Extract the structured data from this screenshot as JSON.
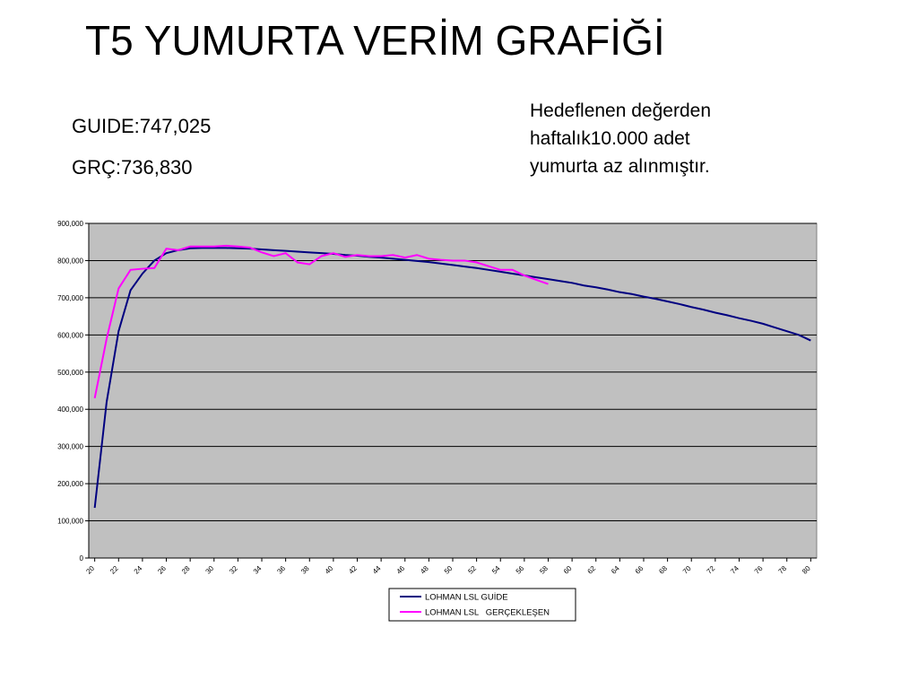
{
  "chart_data": {
    "type": "line",
    "title": "T5 YUMURTA VERİM GRAFİĞİ",
    "annotations": [
      "GUIDE:747,025",
      "GRÇ:736,830"
    ],
    "note": [
      "Hedeflenen değerden",
      "haftalık10.000 adet",
      "yumurta az alınmıştır."
    ],
    "x": [
      20,
      21,
      22,
      23,
      24,
      25,
      26,
      27,
      28,
      29,
      30,
      31,
      32,
      33,
      34,
      35,
      36,
      37,
      38,
      39,
      40,
      41,
      42,
      43,
      44,
      45,
      46,
      47,
      48,
      49,
      50,
      51,
      52,
      53,
      54,
      55,
      56,
      57,
      58,
      59,
      60,
      61,
      62,
      63,
      64,
      65,
      66,
      67,
      68,
      69,
      70,
      71,
      72,
      73,
      74,
      75,
      76,
      77,
      78,
      79,
      80
    ],
    "xlim": [
      19.5,
      80.5
    ],
    "xticks": [
      20,
      22,
      24,
      26,
      28,
      30,
      32,
      34,
      36,
      38,
      40,
      42,
      44,
      46,
      48,
      50,
      52,
      54,
      56,
      58,
      60,
      62,
      64,
      66,
      68,
      70,
      72,
      74,
      76,
      78,
      80
    ],
    "ylim": [
      0,
      900000
    ],
    "yticks": [
      0,
      {
        "value": 100000,
        "label": "100,000"
      },
      {
        "value": 200000,
        "label": "200,000"
      },
      {
        "value": 300000,
        "label": "300,000"
      },
      {
        "value": 400000,
        "label": "400,000"
      },
      {
        "value": 500000,
        "label": "500,000"
      },
      {
        "value": 600000,
        "label": "600,000"
      },
      {
        "value": 700000,
        "label": "700,000"
      },
      {
        "value": 800000,
        "label": "800,000"
      },
      {
        "value": 900000,
        "label": "900,000"
      }
    ],
    "grid": true,
    "legend": "bottom",
    "series": [
      {
        "name": "LOHMAN LSL GUİDE",
        "color": "#000080",
        "values": [
          135000,
          420000,
          610000,
          720000,
          765000,
          800000,
          820000,
          828000,
          833000,
          834000,
          834000,
          834000,
          833000,
          832000,
          830000,
          828000,
          826000,
          824000,
          822000,
          820000,
          818000,
          815000,
          813000,
          810000,
          808000,
          805000,
          802000,
          799000,
          796000,
          792000,
          788000,
          784000,
          780000,
          775000,
          770000,
          765000,
          760000,
          755000,
          750000,
          745000,
          740000,
          733000,
          728000,
          722000,
          715000,
          710000,
          703000,
          697000,
          690000,
          683000,
          675000,
          668000,
          660000,
          653000,
          645000,
          638000,
          630000,
          620000,
          610000,
          600000,
          585000
        ]
      },
      {
        "name": "LOHMAN LSL   GERÇEKLEŞEN",
        "color": "#ff00ff",
        "values": [
          430000,
          590000,
          725000,
          775000,
          778000,
          780000,
          832000,
          828000,
          838000,
          838000,
          838000,
          840000,
          838000,
          835000,
          822000,
          812000,
          820000,
          795000,
          790000,
          812000,
          820000,
          810000,
          815000,
          812000,
          812000,
          815000,
          808000,
          815000,
          805000,
          802000,
          800000,
          800000,
          795000,
          785000,
          775000,
          775000,
          760000,
          748000,
          737000,
          null,
          null,
          null,
          null,
          null,
          null,
          null,
          null,
          null,
          null,
          null,
          null,
          null,
          null,
          null,
          null,
          null,
          null,
          null,
          null,
          null,
          null
        ]
      }
    ]
  }
}
